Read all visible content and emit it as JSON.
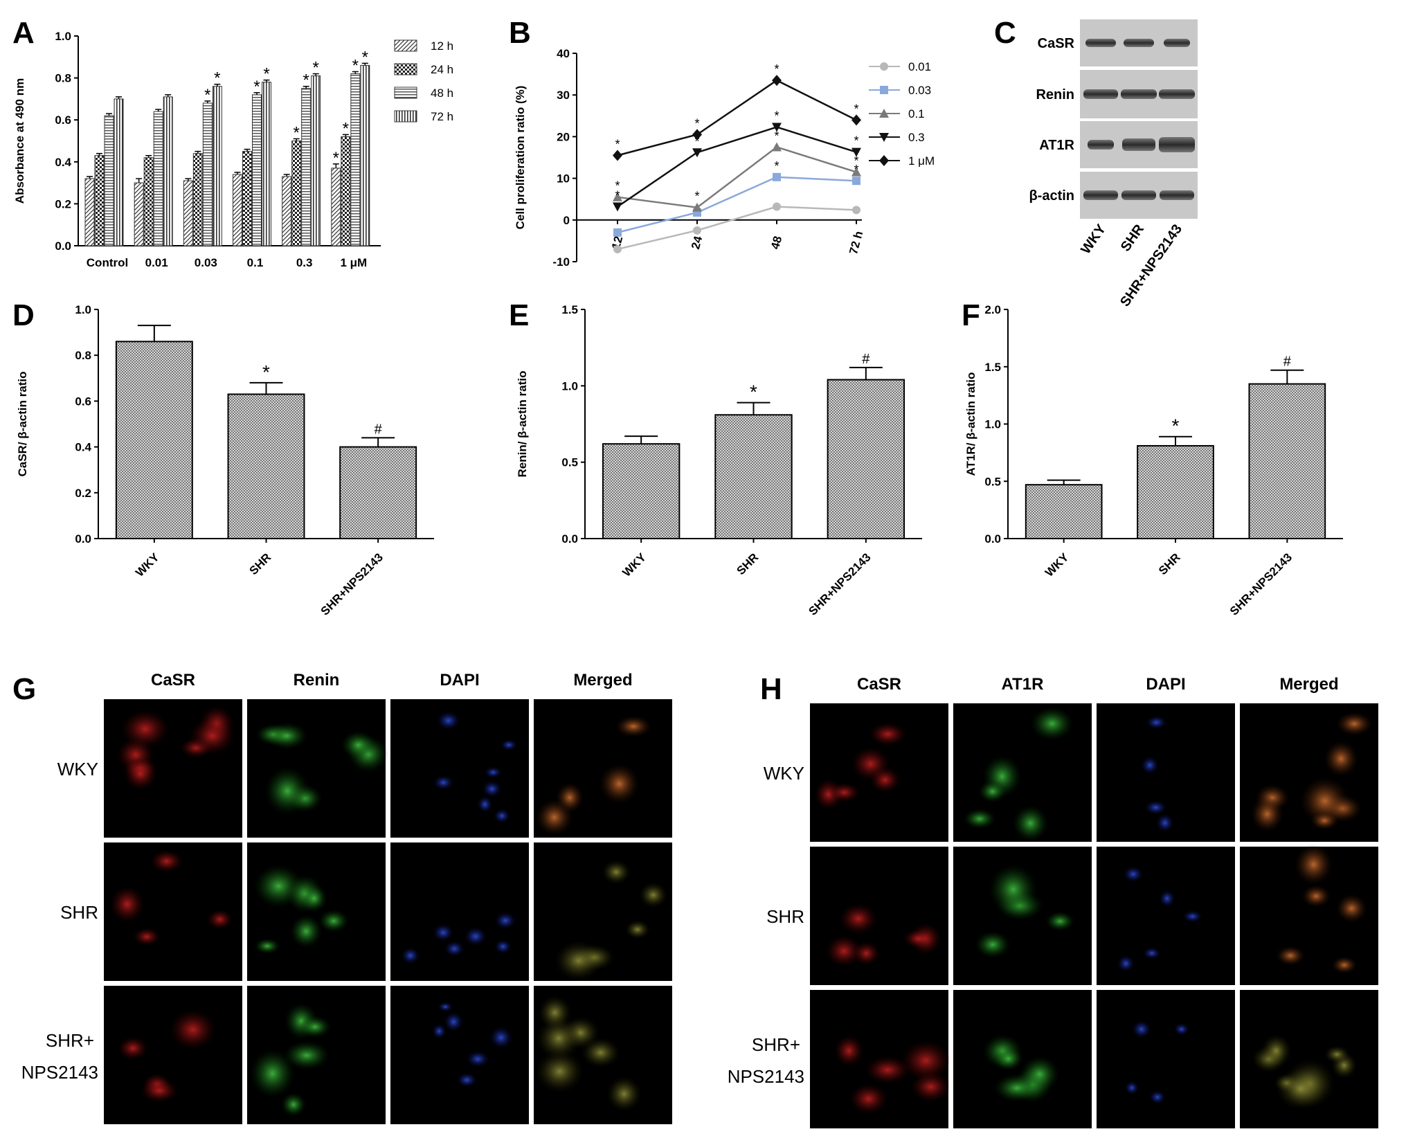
{
  "panels": {
    "A": "A",
    "B": "B",
    "C": "C",
    "D": "D",
    "E": "E",
    "F": "F",
    "G": "G",
    "H": "H"
  },
  "chart_data": [
    {
      "id": "A",
      "type": "bar",
      "ylabel": "Absorbance at 490 nm",
      "ylim": [
        0,
        1.0
      ],
      "yticks": [
        "0.0",
        "0.2",
        "0.4",
        "0.6",
        "0.8",
        "1.0"
      ],
      "categories": [
        "Control",
        "0.01",
        "0.03",
        "0.1",
        "0.3",
        "1 μM"
      ],
      "series": [
        {
          "name": "12 h",
          "values": [
            0.32,
            0.3,
            0.31,
            0.34,
            0.33,
            0.37
          ],
          "errors": [
            0.01,
            0.02,
            0.01,
            0.01,
            0.01,
            0.02
          ],
          "pattern": "diag"
        },
        {
          "name": "24 h",
          "values": [
            0.43,
            0.42,
            0.44,
            0.45,
            0.5,
            0.52
          ],
          "errors": [
            0.01,
            0.01,
            0.01,
            0.01,
            0.01,
            0.01
          ],
          "pattern": "check"
        },
        {
          "name": "48 h",
          "values": [
            0.62,
            0.64,
            0.68,
            0.72,
            0.75,
            0.82
          ],
          "errors": [
            0.01,
            0.01,
            0.01,
            0.01,
            0.01,
            0.01
          ],
          "pattern": "hlines"
        },
        {
          "name": "72 h",
          "values": [
            0.7,
            0.71,
            0.76,
            0.78,
            0.81,
            0.86
          ],
          "errors": [
            0.01,
            0.01,
            0.01,
            0.01,
            0.01,
            0.01
          ],
          "pattern": "vlines"
        }
      ],
      "stars": [
        [],
        [],
        [
          2,
          3
        ],
        [
          2,
          3
        ],
        [
          1,
          2,
          3
        ],
        [
          0,
          1,
          2,
          3
        ]
      ],
      "legend": "top-right"
    },
    {
      "id": "B",
      "type": "line",
      "ylabel": "Cell proliferation ratio (%)",
      "ylim": [
        -10,
        40
      ],
      "yticks": [
        "-10",
        "0",
        "10",
        "20",
        "30",
        "40"
      ],
      "x": [
        "12",
        "24",
        "48",
        "72 h"
      ],
      "series": [
        {
          "name": "0.01",
          "values": [
            -7,
            -2.5,
            3.2,
            2.4
          ],
          "color": "#b8b8b8",
          "marker": "circle"
        },
        {
          "name": "0.03",
          "values": [
            -3,
            1.8,
            10.3,
            9.4
          ],
          "color": "#8aa8dc",
          "marker": "square"
        },
        {
          "name": "0.1",
          "values": [
            5.5,
            3.0,
            17.5,
            11.5
          ],
          "color": "#7a7a7a",
          "marker": "triangle"
        },
        {
          "name": "0.3",
          "values": [
            3.2,
            16.2,
            22.3,
            16.3
          ],
          "color": "#111111",
          "marker": "triangle-down"
        },
        {
          "name": "1 μM",
          "values": [
            15.5,
            20.5,
            33.5,
            24.0
          ],
          "color": "#111111",
          "marker": "diamond"
        }
      ],
      "legend": "right"
    },
    {
      "id": "D",
      "type": "bar",
      "ylabel": "CaSR/ β-actin ratio",
      "ylim": [
        0,
        1.0
      ],
      "yticks": [
        "0.0",
        "0.2",
        "0.4",
        "0.6",
        "0.8",
        "1.0"
      ],
      "categories": [
        "WKY",
        "SHR",
        "SHR+NPS2143"
      ],
      "values": [
        0.86,
        0.63,
        0.4
      ],
      "errors": [
        0.07,
        0.05,
        0.04
      ],
      "marks": [
        "",
        "*",
        "#"
      ]
    },
    {
      "id": "E",
      "type": "bar",
      "ylabel": "Renin/ β-actin ratio",
      "ylim": [
        0,
        1.5
      ],
      "yticks": [
        "0.0",
        "0.5",
        "1.0",
        "1.5"
      ],
      "categories": [
        "WKY",
        "SHR",
        "SHR+NPS2143"
      ],
      "values": [
        0.62,
        0.81,
        1.04
      ],
      "errors": [
        0.05,
        0.08,
        0.08
      ],
      "marks": [
        "",
        "*",
        "#"
      ]
    },
    {
      "id": "F",
      "type": "bar",
      "ylabel": "AT1R/ β-actin ratio",
      "ylim": [
        0,
        2.0
      ],
      "yticks": [
        "0.0",
        "0.5",
        "1.0",
        "1.5",
        "2.0"
      ],
      "categories": [
        "WKY",
        "SHR",
        "SHR+NPS2143"
      ],
      "values": [
        0.47,
        0.81,
        1.35
      ],
      "errors": [
        0.04,
        0.08,
        0.12
      ],
      "marks": [
        "",
        "*",
        "#"
      ]
    }
  ],
  "blot": {
    "rows": [
      "CaSR",
      "Renin",
      "AT1R",
      "β-actin"
    ],
    "columns": [
      "WKY",
      "SHR",
      "SHR+NPS2143"
    ]
  },
  "panel_G": {
    "columns": [
      "CaSR",
      "Renin",
      "DAPI",
      "Merged"
    ],
    "rows": [
      "WKY",
      "SHR",
      "SHR+",
      "NPS2143"
    ]
  },
  "panel_H": {
    "columns": [
      "CaSR",
      "AT1R",
      "DAPI",
      "Merged"
    ],
    "rows": [
      "WKY",
      "SHR",
      "SHR+",
      "NPS2143"
    ]
  }
}
